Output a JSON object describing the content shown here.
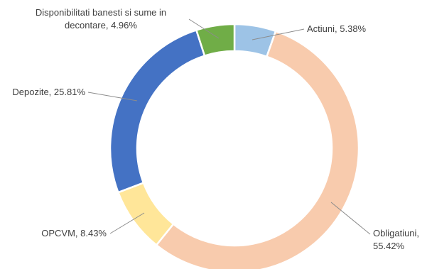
{
  "chart_data": {
    "type": "pie",
    "variant": "doughnut",
    "slices": [
      {
        "name": "Actiuni",
        "value": 5.38,
        "label": "Actiuni, 5.38%",
        "color": "#9DC3E6"
      },
      {
        "name": "Obligatiuni",
        "value": 55.42,
        "label": "Obligatiuni,\n55.42%",
        "color": "#F8CBAD"
      },
      {
        "name": "OPCVM",
        "value": 8.43,
        "label": "OPCVM, 8.43%",
        "color": "#FFE699"
      },
      {
        "name": "Depozite",
        "value": 25.81,
        "label": "Depozite, 25.81%",
        "color": "#4472C4"
      },
      {
        "name": "Disponibilitati banesti si sume in decontare",
        "value": 4.96,
        "label": "Disponibilitati banesti si sume in\ndecontare, 4.96%",
        "color": "#70AD47"
      }
    ],
    "start_angle_deg": 0,
    "direction": "clockwise",
    "legend": "none",
    "data_labels": "outside with leader lines"
  }
}
